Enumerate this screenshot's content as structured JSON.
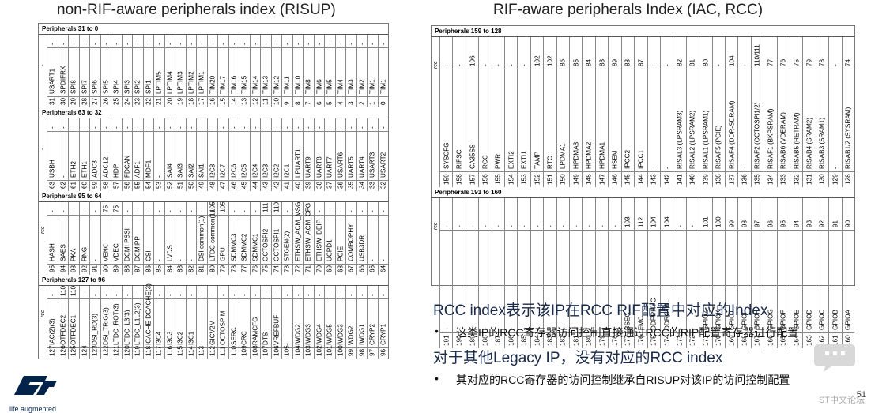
{
  "titles": {
    "left": "non-RIF-aware peripherals index (RISUP)",
    "right": "RIF-aware peripherals Index (IAC, RCC)"
  },
  "left_groups": [
    {
      "label": "Peripherals 31 to 0",
      "row_label": "-",
      "cells": [
        [
          "-",
          "USART1",
          "31"
        ],
        [
          "-",
          "SPDIFRX",
          "30"
        ],
        [
          "-",
          "SPI8",
          "29"
        ],
        [
          "-",
          "SPI7",
          "28"
        ],
        [
          "-",
          "SPI6",
          "27"
        ],
        [
          "-",
          "SPI5",
          "26"
        ],
        [
          "-",
          "SPI4",
          "25"
        ],
        [
          "-",
          "SPI3",
          "24"
        ],
        [
          "-",
          "SPI2",
          "23"
        ],
        [
          "-",
          "SPI1",
          "22"
        ],
        [
          "-",
          "LPTIM5",
          "21"
        ],
        [
          "-",
          "LPTIM4",
          "20"
        ],
        [
          "-",
          "LPTIM3",
          "19"
        ],
        [
          "-",
          "LPTIM2",
          "18"
        ],
        [
          "-",
          "LPTIM1",
          "17"
        ],
        [
          "-",
          "TIM20",
          "16"
        ],
        [
          "-",
          "TIM17",
          "15"
        ],
        [
          "-",
          "TIM16",
          "14"
        ],
        [
          "-",
          "TIM15",
          "13"
        ],
        [
          "-",
          "TIM14",
          "12"
        ],
        [
          "-",
          "TIM13",
          "11"
        ],
        [
          "-",
          "TIM12",
          "10"
        ],
        [
          "-",
          "TIM11",
          "9"
        ],
        [
          "-",
          "TIM10",
          "8"
        ],
        [
          "-",
          "TIM8",
          "7"
        ],
        [
          "-",
          "TIM6",
          "6"
        ],
        [
          "-",
          "TIM5",
          "5"
        ],
        [
          "-",
          "TIM4",
          "4"
        ],
        [
          "-",
          "TIM3",
          "3"
        ],
        [
          "-",
          "TIM2",
          "2"
        ],
        [
          "-",
          "TIM1",
          "1"
        ],
        [
          "-",
          "TIM1",
          "0"
        ]
      ]
    },
    {
      "label": "Peripherals 63 to 32",
      "row_label": "-",
      "cells": [
        [
          "-",
          "USBH",
          "63"
        ],
        [
          "-",
          "-",
          "62"
        ],
        [
          "-",
          "ETH2",
          "61"
        ],
        [
          "-",
          "ETH1",
          "60"
        ],
        [
          "-",
          "ADC3",
          "59"
        ],
        [
          "-",
          "ADC12",
          "58"
        ],
        [
          "-",
          "HDP",
          "57"
        ],
        [
          "-",
          "FDCAN",
          "56"
        ],
        [
          "-",
          "ADF1",
          "55"
        ],
        [
          "-",
          "MDF1",
          "54"
        ],
        [
          "-",
          "-",
          "53"
        ],
        [
          "-",
          "SAI4",
          "52"
        ],
        [
          "-",
          "SAI3",
          "51"
        ],
        [
          "-",
          "SAI2",
          "50"
        ],
        [
          "-",
          "SAI1",
          "49"
        ],
        [
          "-",
          "I2C8",
          "48"
        ],
        [
          "-",
          "I2C7",
          "47"
        ],
        [
          "-",
          "I2C6",
          "46"
        ],
        [
          "-",
          "I2C5",
          "45"
        ],
        [
          "-",
          "I2C4",
          "44"
        ],
        [
          "-",
          "I2C3",
          "43"
        ],
        [
          "-",
          "I2C2",
          "42"
        ],
        [
          "-",
          "I2C1",
          "41"
        ],
        [
          "-",
          "LPUART1",
          "40"
        ],
        [
          "-",
          "UART9",
          "39"
        ],
        [
          "-",
          "UART8",
          "38"
        ],
        [
          "-",
          "UART7",
          "37"
        ],
        [
          "-",
          "USART6",
          "36"
        ],
        [
          "-",
          "UART5",
          "35"
        ],
        [
          "-",
          "UART4",
          "34"
        ],
        [
          "-",
          "USART3",
          "33"
        ],
        [
          "-",
          "USART2",
          "32"
        ]
      ]
    },
    {
      "label": "Peripherals 95 to 64",
      "row_label": "rcc",
      "cells": [
        [
          "-",
          "HASH",
          "95"
        ],
        [
          "-",
          "SAES",
          "94"
        ],
        [
          "-",
          "PKA",
          "93"
        ],
        [
          "-",
          "RNG",
          "92"
        ],
        [
          "-",
          "-",
          "91"
        ],
        [
          "75",
          "VENC",
          "90"
        ],
        [
          "75",
          "VDEC",
          "89"
        ],
        [
          "-",
          "DCMI PSSI",
          "88"
        ],
        [
          "-",
          "DCMIPP",
          "87"
        ],
        [
          "-",
          "CSI",
          "86"
        ],
        [
          "-",
          "-",
          "85"
        ],
        [
          "-",
          "LVDS",
          "84"
        ],
        [
          "-",
          "-",
          "83"
        ],
        [
          "-",
          "-",
          "82"
        ],
        [
          "-",
          "DSI common(1)",
          "81"
        ],
        [
          "105",
          "LTDC common(1)",
          "80"
        ],
        [
          "105",
          "GPU",
          "79"
        ],
        [
          "-",
          "SDMMC3",
          "78"
        ],
        [
          "-",
          "SDMMC2",
          "77"
        ],
        [
          "-",
          "SDMMC1",
          "76"
        ],
        [
          "111",
          "OCTOSPI2",
          "75"
        ],
        [
          "110",
          "OCTOSPI1",
          "74"
        ],
        [
          "-",
          "STGEN(2)",
          "73"
        ],
        [
          "-",
          "ETHSW_ACM_MSG",
          "72"
        ],
        [
          "-",
          "ETHSW_ACM_CFG",
          "71"
        ],
        [
          "-",
          "ETHSW_DEIP",
          "70"
        ],
        [
          "-",
          "UCPD1",
          "69"
        ],
        [
          "-",
          "PCIE",
          "68"
        ],
        [
          "-",
          "COMBOPHY",
          "67"
        ],
        [
          "-",
          "USB3DR",
          "66"
        ],
        [
          "-",
          "-",
          "65"
        ],
        [
          "-",
          "-",
          "64"
        ]
      ]
    },
    {
      "label": "Peripherals 127 to 96",
      "row_label": "rcc",
      "cells": [
        [
          "-",
          "IAC(2)(3)",
          "127"
        ],
        [
          "110",
          "OTFDEC2",
          "126"
        ],
        [
          "110",
          "OTFDEC1",
          "125"
        ],
        [
          "-",
          "-",
          "124"
        ],
        [
          "-",
          "DSI_RD(3)",
          "123"
        ],
        [
          "-",
          "DSI_TRIG(3)",
          "122"
        ],
        [
          "-",
          "LTDC_ROT(3)",
          "121"
        ],
        [
          "-",
          "LTDC_L3(3)",
          "120"
        ],
        [
          "-",
          "LTDC_L1L2(3)",
          "119"
        ],
        [
          "-",
          "ICACHE DCACHE(3)",
          "118"
        ],
        [
          "-",
          "I3C4",
          "117"
        ],
        [
          "-",
          "I3C3",
          "116"
        ],
        [
          "-",
          "I3C2",
          "115"
        ],
        [
          "-",
          "I3C1",
          "114"
        ],
        [
          "-",
          "-",
          "113"
        ],
        [
          "-",
          "GICV2M",
          "112"
        ],
        [
          "-",
          "OCTOSPIM",
          "111"
        ],
        [
          "-",
          "SERC",
          "110"
        ],
        [
          "-",
          "CRC",
          "109"
        ],
        [
          "-",
          "RAMCFG",
          "108"
        ],
        [
          "-",
          "DTS",
          "107"
        ],
        [
          "-",
          "VREFBUF",
          "106"
        ],
        [
          "-",
          "-",
          "105"
        ],
        [
          "-",
          "IWDG2",
          "104"
        ],
        [
          "-",
          "IWDG3",
          "103"
        ],
        [
          "-",
          "IWDG4",
          "102"
        ],
        [
          "-",
          "IWDG5",
          "101"
        ],
        [
          "-",
          "IWDG3",
          "100"
        ],
        [
          "-",
          "WDG2",
          "99"
        ],
        [
          "-",
          "IWDG1",
          "98"
        ],
        [
          "-",
          "CRYP2",
          "97"
        ],
        [
          "-",
          "CRYP1",
          "96"
        ]
      ]
    }
  ],
  "right_groups": [
    {
      "label": "Peripherals 159 to 128",
      "row_label": "rcc",
      "cells": [
        [
          "-",
          "SYSCFG",
          "159"
        ],
        [
          "-",
          "RIFSC",
          "158"
        ],
        [
          "106",
          "CA35SS",
          "157"
        ],
        [
          "-",
          "RCC",
          "156"
        ],
        [
          "-",
          "PWR",
          "155"
        ],
        [
          "-",
          "EXTI2",
          "154"
        ],
        [
          "-",
          "EXTI1",
          "153"
        ],
        [
          "102",
          "TAMP",
          "152"
        ],
        [
          "102",
          "RTC",
          "151"
        ],
        [
          "86",
          "LPDMA1",
          "150"
        ],
        [
          "85",
          "HPDMA3",
          "149"
        ],
        [
          "84",
          "HPDMA2",
          "148"
        ],
        [
          "83",
          "HPDMA1",
          "147"
        ],
        [
          "89",
          "HSEM",
          "146"
        ],
        [
          "88",
          "IPCC2",
          "145"
        ],
        [
          "87",
          "IPCC1",
          "144"
        ],
        [
          "-",
          "-",
          "143"
        ],
        [
          "-",
          "-",
          "142"
        ],
        [
          "82",
          "RISAL3 (LPSRAM3)",
          "141"
        ],
        [
          "81",
          "RISAL2 (LPSRAM2)",
          "140"
        ],
        [
          "80",
          "RISAL1 (LPSRAM1)",
          "139"
        ],
        [
          "-",
          "RISAF5 (PCIE)",
          "138"
        ],
        [
          "104",
          "RISAF4 (DDR-SDRAM)",
          "137"
        ],
        [
          "-",
          "-",
          "136"
        ],
        [
          "110/111",
          "RISAF2 (OCTOSPI1/2)",
          "135"
        ],
        [
          "77",
          "RISAF1 (BKPSRAM)",
          "134"
        ],
        [
          "76",
          "RISAB6 (VDERAM)",
          "133"
        ],
        [
          "75",
          "RISAB5 (RETRAM)",
          "132"
        ],
        [
          "79",
          "RISAB4 (SRAM2)",
          "131"
        ],
        [
          "78",
          "RISAB3 (SRAM1)",
          "130"
        ],
        [
          "-",
          "-",
          "129"
        ],
        [
          "74",
          "RISAB1/2 (SYSRAM)",
          "128"
        ]
      ]
    },
    {
      "label": "Peripherals 191 to 160",
      "row_label": "rcc",
      "cells": [
        [
          "-",
          "-",
          "191"
        ],
        [
          "-",
          "-",
          "190"
        ],
        [
          "-",
          "-",
          "189"
        ],
        [
          "-",
          "-",
          "188"
        ],
        [
          "-",
          "-",
          "187"
        ],
        [
          "-",
          "-",
          "186"
        ],
        [
          "-",
          "-",
          "185"
        ],
        [
          "-",
          "-",
          "184"
        ],
        [
          "-",
          "-",
          "183"
        ],
        [
          "-",
          "-",
          "182"
        ],
        [
          "-",
          "-",
          "181"
        ],
        [
          "-",
          "-",
          "180"
        ],
        [
          "-",
          "-",
          "179"
        ],
        [
          "-",
          "-",
          "178"
        ],
        [
          "103",
          "BSEC",
          "177"
        ],
        [
          "112",
          "FMC",
          "176"
        ],
        [
          "104",
          "DDRPHYC",
          "175"
        ],
        [
          "104",
          "DDRCTRL",
          "174"
        ],
        [
          "-",
          "-",
          "173"
        ],
        [
          "-",
          "-",
          "172"
        ],
        [
          "101",
          "GPIOZ",
          "171"
        ],
        [
          "100",
          "GPIOK",
          "170"
        ],
        [
          "99",
          "GPIOJ",
          "169"
        ],
        [
          "98",
          "GPIOI",
          "168"
        ],
        [
          "97",
          "GPIOH",
          "167"
        ],
        [
          "96",
          "GPIOG",
          "166"
        ],
        [
          "95",
          "GPIOF",
          "165"
        ],
        [
          "94",
          "GPIOE",
          "164"
        ],
        [
          "93",
          "GPIOD",
          "163"
        ],
        [
          "92",
          "GPIOC",
          "162"
        ],
        [
          "91",
          "GPIOB",
          "161"
        ],
        [
          "90",
          "GPIOA",
          "160"
        ]
      ]
    }
  ],
  "notes": {
    "h1": "RCC index表示该IP在RCC RIF配置中对应的Index",
    "b1": "这类IP的RCC寄存器访问控制直接通过RCC的RIP配置寄存器进行配置",
    "h2": "对于其他Legacy IP，没有对应的RCC index",
    "b2": "其对应的RCC寄存器的访问控制继承自RISUP对该IP的访问控制配置",
    "bullet": "•"
  },
  "logo_tagline": "life.augmented",
  "page_number": "51",
  "watermark": "ST中文论坛",
  "colors": {
    "st_blue": "#03234b",
    "accent": "#1a2a4a"
  }
}
